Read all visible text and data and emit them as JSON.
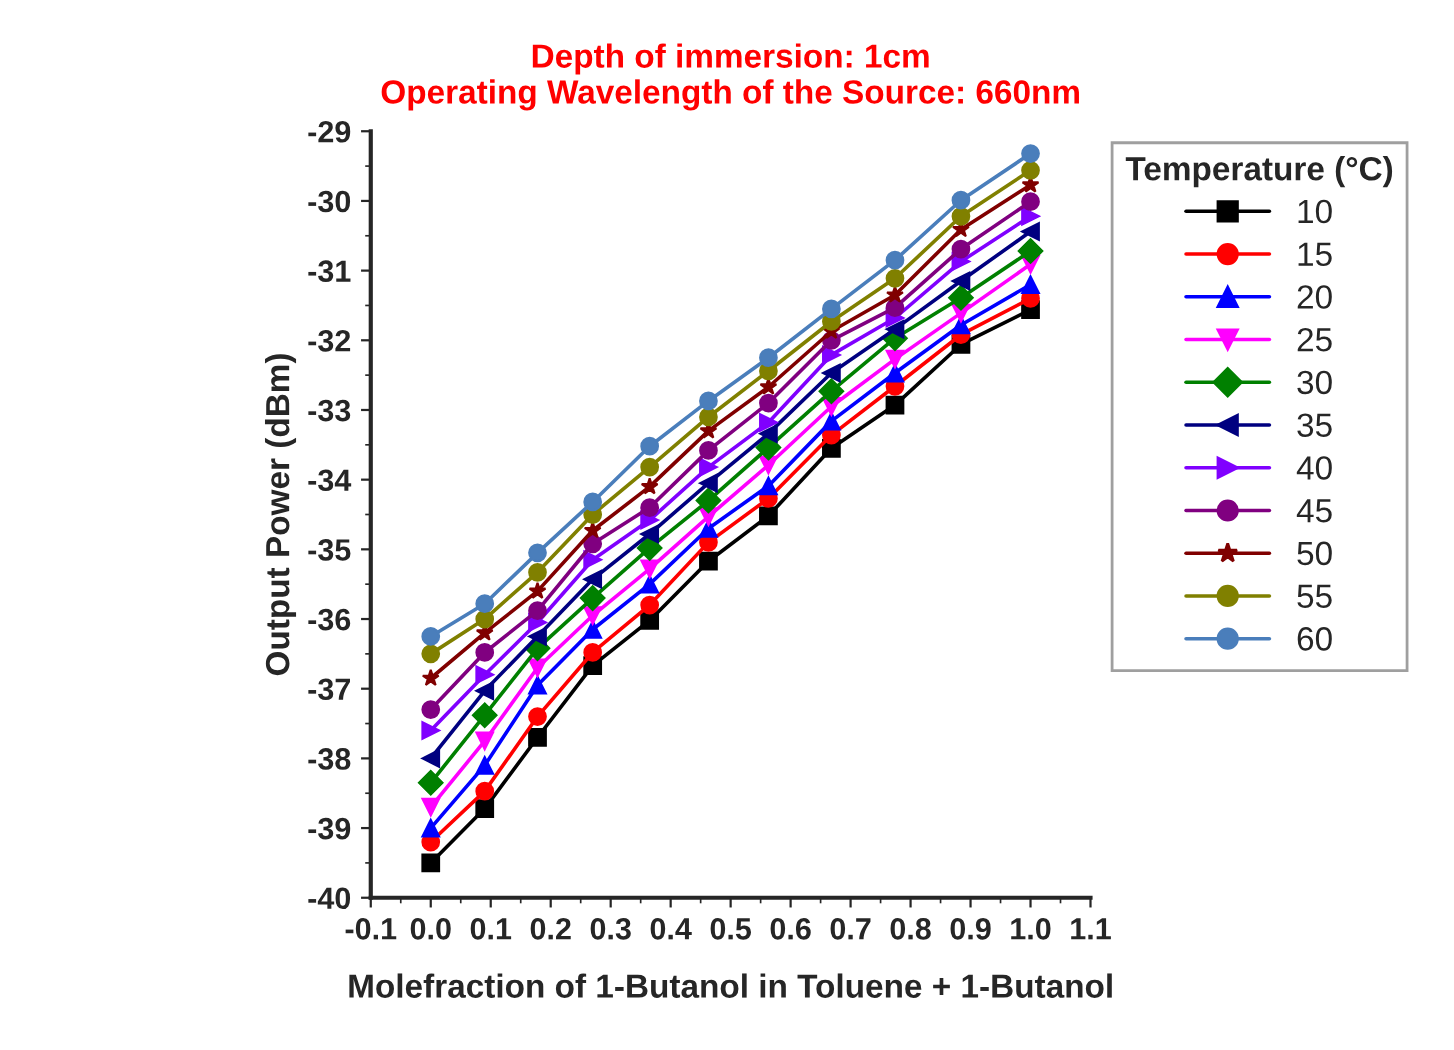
{
  "chart_data": {
    "type": "line",
    "title": "Depth of immersion: 1cm\nOperating Wavelength of the Source: 660nm",
    "xlabel": "Molefraction of 1-Butanol in Toluene + 1-Butanol",
    "ylabel": "Output Power (dBm)",
    "legend_title": "Temperature (°C)",
    "legend": "right",
    "x": [
      0.0,
      0.09,
      0.178,
      0.27,
      0.365,
      0.463,
      0.563,
      0.668,
      0.774,
      0.884,
      1.0
    ],
    "xlim": [
      -0.1,
      1.1
    ],
    "xticks": [
      -0.1,
      {
        "value": 0,
        "label": "0.0"
      },
      0.1,
      0.2,
      0.3,
      0.4,
      0.5,
      0.6,
      0.7,
      0.8,
      0.9,
      {
        "value": 1,
        "label": "1.0"
      },
      1.1
    ],
    "ylim": [
      -40,
      -29
    ],
    "yticks": [
      -40,
      -39,
      -38,
      -37,
      -36,
      -35,
      -34,
      -33,
      -32,
      -31,
      -30,
      -29
    ],
    "grid": false,
    "series": [
      {
        "name": "10",
        "color": "#000000",
        "marker": "square",
        "values": [
          -39.5,
          -38.72,
          -37.7,
          -36.67,
          -36.02,
          -35.17,
          -34.52,
          -33.55,
          -32.93,
          -32.06,
          -31.56
        ]
      },
      {
        "name": "15",
        "color": "#ff0000",
        "marker": "circle",
        "values": [
          -39.2,
          -38.47,
          -37.4,
          -36.48,
          -35.8,
          -34.9,
          -34.27,
          -33.36,
          -32.66,
          -31.92,
          -31.4
        ]
      },
      {
        "name": "20",
        "color": "#0000ff",
        "marker": "triangle",
        "values": [
          -39.0,
          -38.1,
          -36.95,
          -36.15,
          -35.5,
          -34.7,
          -34.09,
          -33.16,
          -32.47,
          -31.78,
          -31.2
        ]
      },
      {
        "name": "25",
        "color": "#ff00ff",
        "marker": "triangle_down",
        "values": [
          -38.7,
          -37.75,
          -36.7,
          -35.95,
          -35.28,
          -34.53,
          -33.79,
          -32.95,
          -32.27,
          -31.61,
          -30.91
        ]
      },
      {
        "name": "30",
        "color": "#008000",
        "marker": "diamond",
        "values": [
          -38.35,
          -37.38,
          -36.42,
          -35.7,
          -34.98,
          -34.3,
          -33.54,
          -32.73,
          -31.97,
          -31.39,
          -30.72
        ]
      },
      {
        "name": "35",
        "color": "#000080",
        "marker": "triangle_left",
        "values": [
          -38.0,
          -37.03,
          -36.25,
          -35.43,
          -34.78,
          -34.05,
          -33.34,
          -32.47,
          -31.84,
          -31.15,
          -30.44
        ]
      },
      {
        "name": "40",
        "color": "#8000ff",
        "marker": "triangle_right",
        "values": [
          -37.6,
          -36.8,
          -36.05,
          -35.15,
          -34.58,
          -33.82,
          -33.18,
          -32.21,
          -31.68,
          -30.87,
          -30.22
        ]
      },
      {
        "name": "45",
        "color": "#800080",
        "marker": "circle",
        "values": [
          -37.3,
          -36.48,
          -35.88,
          -34.92,
          -34.4,
          -33.58,
          -32.9,
          -32.0,
          -31.53,
          -30.69,
          -30.01
        ]
      },
      {
        "name": "50",
        "color": "#800000",
        "marker": "star",
        "values": [
          -36.85,
          -36.2,
          -35.6,
          -34.73,
          -34.1,
          -33.3,
          -32.67,
          -31.87,
          -31.35,
          -30.41,
          -29.77
        ]
      },
      {
        "name": "55",
        "color": "#808000",
        "marker": "circle",
        "values": [
          -36.5,
          -36.0,
          -35.33,
          -34.5,
          -33.82,
          -33.1,
          -32.44,
          -31.73,
          -31.11,
          -30.22,
          -29.56
        ]
      },
      {
        "name": "60",
        "color": "#4a7ebb",
        "marker": "circle",
        "values": [
          -36.25,
          -35.78,
          -35.05,
          -34.32,
          -33.52,
          -32.87,
          -32.25,
          -31.55,
          -30.85,
          -29.99,
          -29.32
        ]
      }
    ]
  }
}
